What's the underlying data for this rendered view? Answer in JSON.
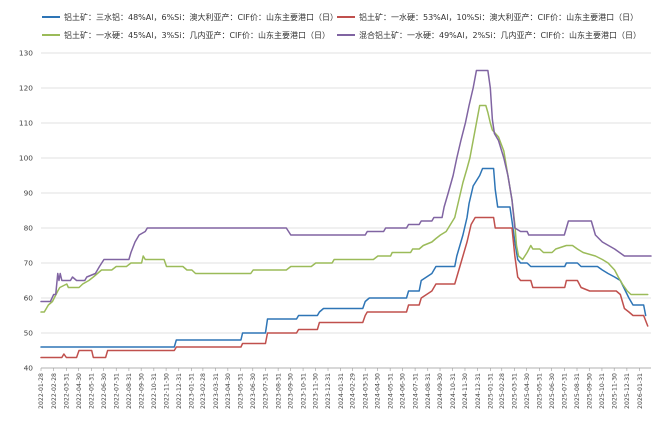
{
  "chart_data": {
    "type": "line",
    "title": "",
    "xlabel": "",
    "ylabel": "",
    "ylim": [
      40,
      130
    ],
    "yticks": [
      40,
      50,
      60,
      70,
      80,
      90,
      100,
      110,
      120,
      130
    ],
    "grid": "horizontal",
    "legend_position": "top",
    "x_range": [
      "2022-01-28",
      "2026-02-28"
    ],
    "x_ticks": [
      "2022-01-28",
      "2022-02-28",
      "2022-03-31",
      "2022-04-30",
      "2022-05-31",
      "2022-06-30",
      "2022-07-31",
      "2022-08-31",
      "2022-09-30",
      "2022-10-31",
      "2022-11-30",
      "2022-12-31",
      "2023-01-31",
      "2023-02-28",
      "2023-03-31",
      "2023-04-30",
      "2023-05-31",
      "2023-06-30",
      "2023-07-31",
      "2023-08-31",
      "2023-09-30",
      "2023-10-31",
      "2023-11-30",
      "2023-12-31",
      "2024-01-31",
      "2024-02-29",
      "2024-03-31",
      "2024-04-30",
      "2024-05-31",
      "2024-06-30",
      "2024-07-31",
      "2024-08-31",
      "2024-09-30",
      "2024-10-31",
      "2024-11-30",
      "2024-12-31",
      "2025-01-31",
      "2025-02-28",
      "2025-03-31",
      "2025-04-30",
      "2025-05-31",
      "2025-06-30",
      "2025-07-31",
      "2025-08-31",
      "2025-09-30",
      "2025-10-31",
      "2025-11-30",
      "2025-12-31",
      "2026-01-31"
    ],
    "series": [
      {
        "name": "铝土矿：三水铝：48%Al，6%Si：澳大利亚产：CIF价：山东主要港口（日）",
        "color": "#2e75b6",
        "points": [
          [
            "2022-01-28",
            46
          ],
          [
            "2022-12-20",
            46
          ],
          [
            "2022-12-25",
            48
          ],
          [
            "2023-06-01",
            48
          ],
          [
            "2023-06-05",
            50
          ],
          [
            "2023-07-31",
            50
          ],
          [
            "2023-08-05",
            54
          ],
          [
            "2023-10-15",
            54
          ],
          [
            "2023-10-20",
            55
          ],
          [
            "2023-12-05",
            55
          ],
          [
            "2023-12-10",
            56
          ],
          [
            "2023-12-20",
            57
          ],
          [
            "2024-03-25",
            57
          ],
          [
            "2024-03-31",
            59
          ],
          [
            "2024-04-10",
            60
          ],
          [
            "2024-07-10",
            60
          ],
          [
            "2024-07-15",
            62
          ],
          [
            "2024-08-10",
            62
          ],
          [
            "2024-08-15",
            65
          ],
          [
            "2024-09-10",
            67
          ],
          [
            "2024-09-20",
            69
          ],
          [
            "2024-11-05",
            69
          ],
          [
            "2024-11-10",
            72
          ],
          [
            "2024-11-25",
            78
          ],
          [
            "2024-12-05",
            83
          ],
          [
            "2024-12-10",
            87
          ],
          [
            "2024-12-20",
            92
          ],
          [
            "2025-01-05",
            95
          ],
          [
            "2025-01-12",
            97
          ],
          [
            "2025-02-08",
            97
          ],
          [
            "2025-02-12",
            91
          ],
          [
            "2025-02-18",
            86
          ],
          [
            "2025-03-20",
            86
          ],
          [
            "2025-03-25",
            82
          ],
          [
            "2025-04-01",
            76
          ],
          [
            "2025-04-08",
            71
          ],
          [
            "2025-04-15",
            70
          ],
          [
            "2025-05-01",
            70
          ],
          [
            "2025-05-10",
            69
          ],
          [
            "2025-08-01",
            69
          ],
          [
            "2025-08-05",
            70
          ],
          [
            "2025-09-01",
            70
          ],
          [
            "2025-09-10",
            69
          ],
          [
            "2025-10-20",
            69
          ],
          [
            "2025-11-01",
            68
          ],
          [
            "2025-11-15",
            67
          ],
          [
            "2025-12-01",
            66
          ],
          [
            "2025-12-15",
            65
          ],
          [
            "2026-01-05",
            60
          ],
          [
            "2026-01-15",
            58
          ],
          [
            "2026-02-10",
            58
          ],
          [
            "2026-02-15",
            55
          ]
        ]
      },
      {
        "name": "铝土矿：一水硬：53%Al，10%Si：澳大利亚产：CIF价：山东主要港口（日）",
        "color": "#c0504d",
        "points": [
          [
            "2022-01-28",
            43
          ],
          [
            "2022-03-20",
            43
          ],
          [
            "2022-03-25",
            44
          ],
          [
            "2022-03-31",
            43
          ],
          [
            "2022-04-25",
            43
          ],
          [
            "2022-05-01",
            45
          ],
          [
            "2022-06-01",
            45
          ],
          [
            "2022-06-05",
            43
          ],
          [
            "2022-07-05",
            43
          ],
          [
            "2022-07-10",
            45
          ],
          [
            "2022-12-20",
            45
          ],
          [
            "2022-12-25",
            46
          ],
          [
            "2023-06-01",
            46
          ],
          [
            "2023-06-05",
            47
          ],
          [
            "2023-07-31",
            47
          ],
          [
            "2023-08-05",
            50
          ],
          [
            "2023-10-15",
            50
          ],
          [
            "2023-10-20",
            51
          ],
          [
            "2023-12-05",
            51
          ],
          [
            "2023-12-10",
            53
          ],
          [
            "2024-03-25",
            53
          ],
          [
            "2024-03-31",
            55
          ],
          [
            "2024-04-05",
            56
          ],
          [
            "2024-07-10",
            56
          ],
          [
            "2024-07-15",
            58
          ],
          [
            "2024-08-10",
            58
          ],
          [
            "2024-08-15",
            60
          ],
          [
            "2024-09-10",
            62
          ],
          [
            "2024-09-20",
            64
          ],
          [
            "2024-11-05",
            64
          ],
          [
            "2024-11-10",
            66
          ],
          [
            "2024-11-20",
            70
          ],
          [
            "2024-12-05",
            76
          ],
          [
            "2024-12-15",
            81
          ],
          [
            "2024-12-25",
            83
          ],
          [
            "2025-02-08",
            83
          ],
          [
            "2025-02-12",
            80
          ],
          [
            "2025-03-25",
            80
          ],
          [
            "2025-04-01",
            72
          ],
          [
            "2025-04-08",
            66
          ],
          [
            "2025-04-15",
            65
          ],
          [
            "2025-05-10",
            65
          ],
          [
            "2025-05-15",
            63
          ],
          [
            "2025-08-01",
            63
          ],
          [
            "2025-08-05",
            65
          ],
          [
            "2025-09-01",
            65
          ],
          [
            "2025-09-10",
            63
          ],
          [
            "2025-10-01",
            62
          ],
          [
            "2025-12-05",
            62
          ],
          [
            "2025-12-15",
            61
          ],
          [
            "2025-12-25",
            57
          ],
          [
            "2026-01-05",
            56
          ],
          [
            "2026-01-15",
            55
          ],
          [
            "2026-02-10",
            55
          ],
          [
            "2026-02-20",
            52
          ]
        ]
      },
      {
        "name": "铝土矿：一水硬：45%Al，3%Si：几内亚产：CIF价：山东主要港口（日）",
        "color": "#9bbb59",
        "points": [
          [
            "2022-01-28",
            56
          ],
          [
            "2022-02-05",
            56
          ],
          [
            "2022-02-10",
            57
          ],
          [
            "2022-02-15",
            58
          ],
          [
            "2022-02-25",
            59
          ],
          [
            "2022-03-10",
            62
          ],
          [
            "2022-03-15",
            63
          ],
          [
            "2022-04-01",
            64
          ],
          [
            "2022-04-05",
            63
          ],
          [
            "2022-05-01",
            63
          ],
          [
            "2022-05-10",
            64
          ],
          [
            "2022-05-25",
            65
          ],
          [
            "2022-06-05",
            66
          ],
          [
            "2022-06-15",
            67
          ],
          [
            "2022-06-25",
            68
          ],
          [
            "2022-07-20",
            68
          ],
          [
            "2022-07-31",
            69
          ],
          [
            "2022-08-25",
            69
          ],
          [
            "2022-09-05",
            70
          ],
          [
            "2022-10-01",
            70
          ],
          [
            "2022-10-05",
            72
          ],
          [
            "2022-10-10",
            71
          ],
          [
            "2022-11-25",
            71
          ],
          [
            "2022-12-01",
            69
          ],
          [
            "2023-01-10",
            69
          ],
          [
            "2023-01-20",
            68
          ],
          [
            "2023-02-01",
            68
          ],
          [
            "2023-02-10",
            67
          ],
          [
            "2023-06-25",
            67
          ],
          [
            "2023-07-01",
            68
          ],
          [
            "2023-09-20",
            68
          ],
          [
            "2023-10-01",
            69
          ],
          [
            "2023-11-20",
            69
          ],
          [
            "2023-12-01",
            70
          ],
          [
            "2024-01-10",
            70
          ],
          [
            "2024-01-15",
            71
          ],
          [
            "2024-04-20",
            71
          ],
          [
            "2024-05-01",
            72
          ],
          [
            "2024-06-01",
            72
          ],
          [
            "2024-06-05",
            73
          ],
          [
            "2024-07-20",
            73
          ],
          [
            "2024-07-25",
            74
          ],
          [
            "2024-08-10",
            74
          ],
          [
            "2024-08-20",
            75
          ],
          [
            "2024-09-10",
            76
          ],
          [
            "2024-09-20",
            77
          ],
          [
            "2024-10-01",
            78
          ],
          [
            "2024-10-15",
            79
          ],
          [
            "2024-11-05",
            83
          ],
          [
            "2024-11-15",
            88
          ],
          [
            "2024-11-25",
            93
          ],
          [
            "2024-12-05",
            97
          ],
          [
            "2024-12-12",
            100
          ],
          [
            "2024-12-20",
            105
          ],
          [
            "2024-12-28",
            110
          ],
          [
            "2025-01-05",
            115
          ],
          [
            "2025-01-20",
            115
          ],
          [
            "2025-01-25",
            113
          ],
          [
            "2025-01-31",
            110
          ],
          [
            "2025-02-05",
            108
          ],
          [
            "2025-02-20",
            106
          ],
          [
            "2025-03-05",
            102
          ],
          [
            "2025-03-15",
            95
          ],
          [
            "2025-03-25",
            88
          ],
          [
            "2025-04-01",
            81
          ],
          [
            "2025-04-05",
            75
          ],
          [
            "2025-04-10",
            72
          ],
          [
            "2025-04-20",
            71
          ],
          [
            "2025-05-01",
            73
          ],
          [
            "2025-05-10",
            75
          ],
          [
            "2025-05-15",
            74
          ],
          [
            "2025-06-01",
            74
          ],
          [
            "2025-06-10",
            73
          ],
          [
            "2025-07-01",
            73
          ],
          [
            "2025-07-10",
            74
          ],
          [
            "2025-08-05",
            75
          ],
          [
            "2025-08-20",
            75
          ],
          [
            "2025-09-01",
            74
          ],
          [
            "2025-09-15",
            73
          ],
          [
            "2025-10-15",
            72
          ],
          [
            "2025-11-01",
            71
          ],
          [
            "2025-11-15",
            70
          ],
          [
            "2025-12-01",
            68
          ],
          [
            "2025-12-10",
            66
          ],
          [
            "2025-12-20",
            64
          ],
          [
            "2026-01-01",
            62
          ],
          [
            "2026-01-10",
            61
          ],
          [
            "2026-02-20",
            61
          ]
        ]
      },
      {
        "name": "混合铝土矿：一水硬：49%Al，2%Si：几内亚产：CIF价：山东主要港口（日）",
        "color": "#8064a2",
        "points": [
          [
            "2022-01-28",
            59
          ],
          [
            "2022-02-20",
            59
          ],
          [
            "2022-02-28",
            61
          ],
          [
            "2022-03-05",
            61
          ],
          [
            "2022-03-10",
            67
          ],
          [
            "2022-03-13",
            65
          ],
          [
            "2022-03-16",
            67
          ],
          [
            "2022-03-20",
            65
          ],
          [
            "2022-04-10",
            65
          ],
          [
            "2022-04-15",
            66
          ],
          [
            "2022-04-25",
            65
          ],
          [
            "2022-05-15",
            65
          ],
          [
            "2022-05-20",
            66
          ],
          [
            "2022-06-10",
            67
          ],
          [
            "2022-06-20",
            69
          ],
          [
            "2022-07-01",
            71
          ],
          [
            "2022-08-31",
            71
          ],
          [
            "2022-09-05",
            73
          ],
          [
            "2022-09-15",
            76
          ],
          [
            "2022-09-25",
            78
          ],
          [
            "2022-10-10",
            79
          ],
          [
            "2022-10-15",
            80
          ],
          [
            "2023-09-20",
            80
          ],
          [
            "2023-10-01",
            78
          ],
          [
            "2024-03-31",
            78
          ],
          [
            "2024-04-05",
            79
          ],
          [
            "2024-05-15",
            79
          ],
          [
            "2024-05-20",
            80
          ],
          [
            "2024-07-10",
            80
          ],
          [
            "2024-07-15",
            81
          ],
          [
            "2024-08-10",
            81
          ],
          [
            "2024-08-15",
            82
          ],
          [
            "2024-09-10",
            82
          ],
          [
            "2024-09-15",
            83
          ],
          [
            "2024-10-05",
            83
          ],
          [
            "2024-10-10",
            86
          ],
          [
            "2024-10-20",
            90
          ],
          [
            "2024-11-01",
            95
          ],
          [
            "2024-11-10",
            100
          ],
          [
            "2024-11-20",
            105
          ],
          [
            "2024-12-01",
            110
          ],
          [
            "2024-12-10",
            115
          ],
          [
            "2024-12-20",
            120
          ],
          [
            "2024-12-28",
            125
          ],
          [
            "2025-01-25",
            125
          ],
          [
            "2025-01-31",
            120
          ],
          [
            "2025-02-05",
            111
          ],
          [
            "2025-02-10",
            107
          ],
          [
            "2025-02-20",
            105
          ],
          [
            "2025-03-05",
            100
          ],
          [
            "2025-03-15",
            95
          ],
          [
            "2025-03-25",
            88
          ],
          [
            "2025-04-01",
            80
          ],
          [
            "2025-04-15",
            79
          ],
          [
            "2025-05-01",
            79
          ],
          [
            "2025-05-05",
            78
          ],
          [
            "2025-07-31",
            78
          ],
          [
            "2025-08-05",
            80
          ],
          [
            "2025-08-10",
            82
          ],
          [
            "2025-10-05",
            82
          ],
          [
            "2025-10-15",
            78
          ],
          [
            "2025-11-01",
            76
          ],
          [
            "2025-12-01",
            74
          ],
          [
            "2025-12-25",
            72
          ],
          [
            "2026-02-28",
            72
          ]
        ]
      }
    ]
  }
}
